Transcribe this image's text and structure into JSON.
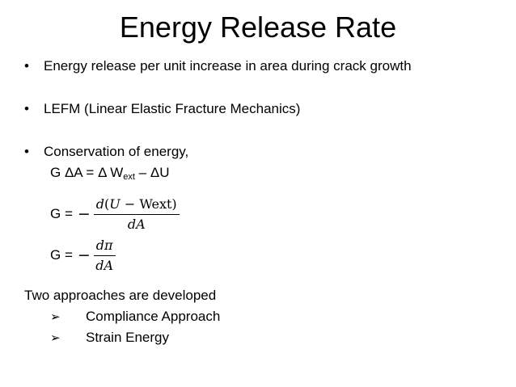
{
  "title": "Energy Release Rate",
  "bullets": [
    "Energy release per unit increase in area during crack growth",
    "LEFM (Linear Elastic Fracture Mechanics)",
    "Conservation of energy,"
  ],
  "equation1": {
    "prefix": "G ΔA =  Δ W",
    "subscript": "ext",
    "suffix": " – ΔU"
  },
  "equation2": {
    "lhs": "G =",
    "sign": "−",
    "numerator_d": "d",
    "numerator_paren_open": "(",
    "numerator_U": "U",
    "numerator_minus": " − ",
    "numerator_wext": "Wext",
    "numerator_paren_close": ")",
    "denominator": "dA"
  },
  "equation3": {
    "lhs": "G =",
    "sign": "−",
    "numerator": "dπ",
    "denominator": "dA"
  },
  "approaches_heading": "Two approaches are developed",
  "approaches": [
    "Compliance Approach",
    "Strain Energy"
  ],
  "bullet_glyph": "•",
  "arrow_glyph": "➢"
}
